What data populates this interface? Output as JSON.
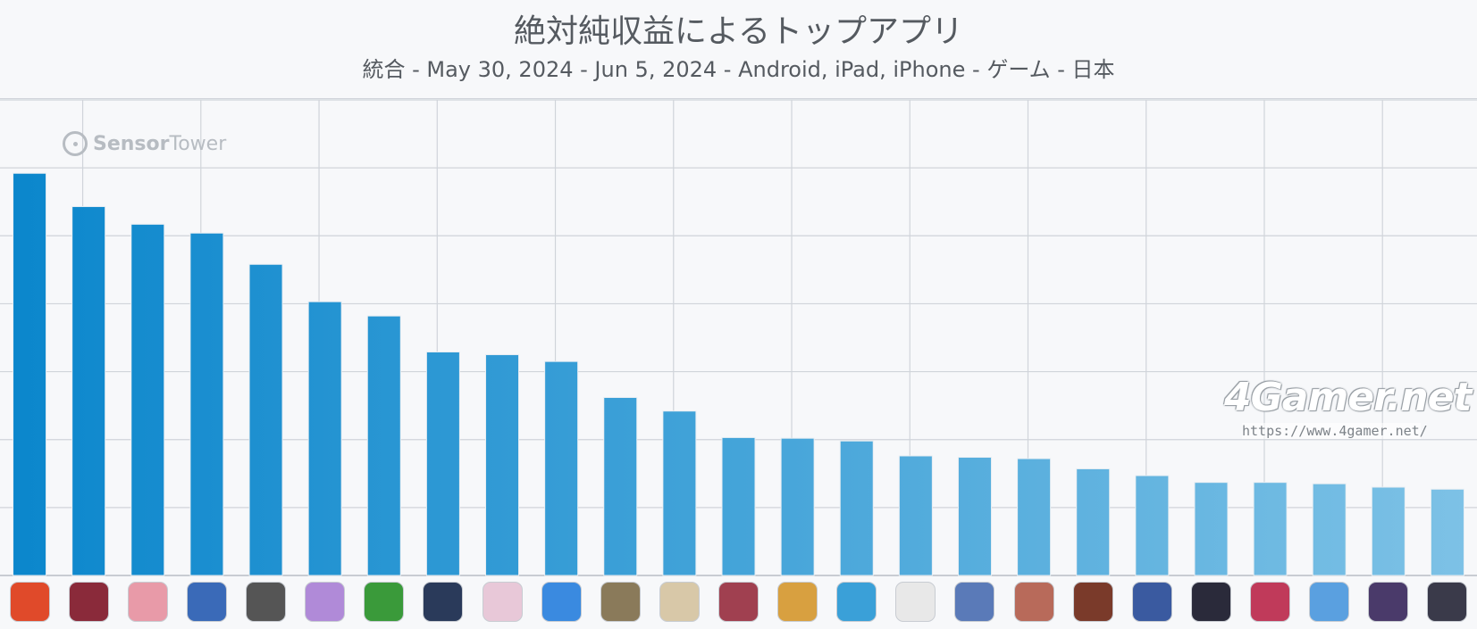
{
  "title": "絶対純収益によるトップアプリ",
  "subtitle": "統合 - May 30, 2024 - Jun 5, 2024 - Android, iPad, iPhone - ゲーム - 日本",
  "watermarks": {
    "sensor_tower": {
      "bold": "Sensor",
      "light": "Tower"
    },
    "fourgamer": {
      "logo": "4Gamer.net",
      "url": "https://www.4gamer.net/"
    }
  },
  "colors": {
    "bar_top": "#0a86cc",
    "bar_bottom": "#7ec2e6",
    "grid": "#d0d4da",
    "background": "#f7f8fa"
  },
  "chart_data": {
    "type": "bar",
    "title": "絶対純収益によるトップアプリ",
    "subtitle": "統合 - May 30, 2024 - Jun 5, 2024 - Android, iPad, iPhone - ゲーム - 日本",
    "xlabel": "",
    "ylabel": "",
    "grid": true,
    "y_tick_labels_visible": false,
    "ylim": [
      0,
      7
    ],
    "values": [
      5.92,
      5.43,
      5.17,
      5.04,
      4.58,
      4.03,
      3.82,
      3.29,
      3.25,
      3.15,
      2.62,
      2.42,
      2.03,
      2.02,
      1.98,
      1.76,
      1.74,
      1.72,
      1.57,
      1.47,
      1.37,
      1.37,
      1.35,
      1.3,
      1.27
    ],
    "app_icons": [
      "red-monster-icon",
      "red-dragon-icon",
      "pink-hair-girl-icon",
      "white-hair-boy-icon",
      "baseball-team-icon",
      "purple-anime-girl-icon",
      "green-mushroom-icon",
      "dark-robot-icon",
      "white-hair-girl-icon",
      "blue-runner-icon",
      "soldier-icon",
      "blonde-girl-icon",
      "red-hair-girl-icon",
      "clash-king-icon",
      "tsum-tsum-icon",
      "pokeball-icon",
      "blue-hair-girl-icon",
      "anime-group-icon",
      "samurai-icon",
      "blue-planet-icon",
      "dark-warrior-icon",
      "red-music-girl-icon",
      "math-puzzle-icon",
      "soccer-team-icon",
      "black-hair-girl-icon"
    ]
  }
}
